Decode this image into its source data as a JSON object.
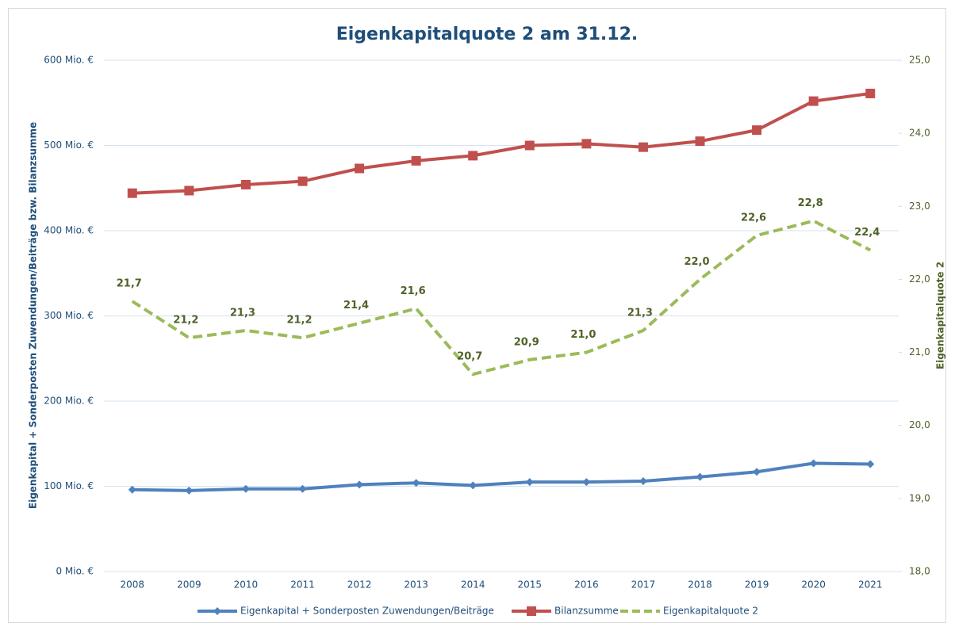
{
  "chart_data": {
    "type": "line",
    "title": "Eigenkapitalquote 2 am 31.12.",
    "y_label": "Eigenkapital + Sonderposten Zuwendungen/Beiträge bzw. Bilanzsumme",
    "y2_label": "Eigenkapitalquote 2",
    "categories": [
      "2008",
      "2009",
      "2010",
      "2011",
      "2012",
      "2013",
      "2014",
      "2015",
      "2016",
      "2017",
      "2018",
      "2019",
      "2020",
      "2021"
    ],
    "series": [
      {
        "name": "Eigenkapital + Sonderposten Zuwendungen/Beiträge",
        "color": "#4f81bd",
        "marker": "diamond",
        "values": [
          96,
          95,
          97,
          97,
          102,
          104,
          101,
          105,
          105,
          106,
          111,
          117,
          127,
          126
        ]
      },
      {
        "name": "Bilanzsumme",
        "color": "#c0504d",
        "marker": "square",
        "values": [
          444,
          447,
          454,
          458,
          473,
          482,
          488,
          500,
          502,
          498,
          505,
          518,
          552,
          561
        ]
      },
      {
        "name": "Eigenkapitalquote 2",
        "color": "#9bbb59",
        "axis": "y2",
        "dashed": true,
        "label_color": "#4f6228",
        "values": [
          21.7,
          21.2,
          21.3,
          21.2,
          21.4,
          21.6,
          20.7,
          20.9,
          21.0,
          21.3,
          22.0,
          22.6,
          22.8,
          22.4
        ],
        "value_labels": [
          "21,7",
          "21,2",
          "21,3",
          "21,2",
          "21,4",
          "21,6",
          "20,7",
          "20,9",
          "21,0",
          "21,3",
          "22,0",
          "22,6",
          "22,8",
          "22,4"
        ]
      }
    ],
    "ylim": [
      0,
      600
    ],
    "yticks": [
      {
        "value": 0,
        "label": "0 Mio. €"
      },
      {
        "value": 100,
        "label": "100 Mio. €"
      },
      {
        "value": 200,
        "label": "200 Mio. €"
      },
      {
        "value": 300,
        "label": "300 Mio. €"
      },
      {
        "value": 400,
        "label": "400 Mio. €"
      },
      {
        "value": 500,
        "label": "500 Mio. €"
      },
      {
        "value": 600,
        "label": "600 Mio. €"
      }
    ],
    "y2lim": [
      18,
      25
    ],
    "y2ticks": [
      {
        "value": 18,
        "label": "18,0"
      },
      {
        "value": 19,
        "label": "19,0"
      },
      {
        "value": 20,
        "label": "20,0"
      },
      {
        "value": 21,
        "label": "21,0"
      },
      {
        "value": 22,
        "label": "22,0"
      },
      {
        "value": 23,
        "label": "23,0"
      },
      {
        "value": 24,
        "label": "24,0"
      },
      {
        "value": 25,
        "label": "25,0"
      }
    ],
    "grid": true,
    "legend": "bottom"
  }
}
